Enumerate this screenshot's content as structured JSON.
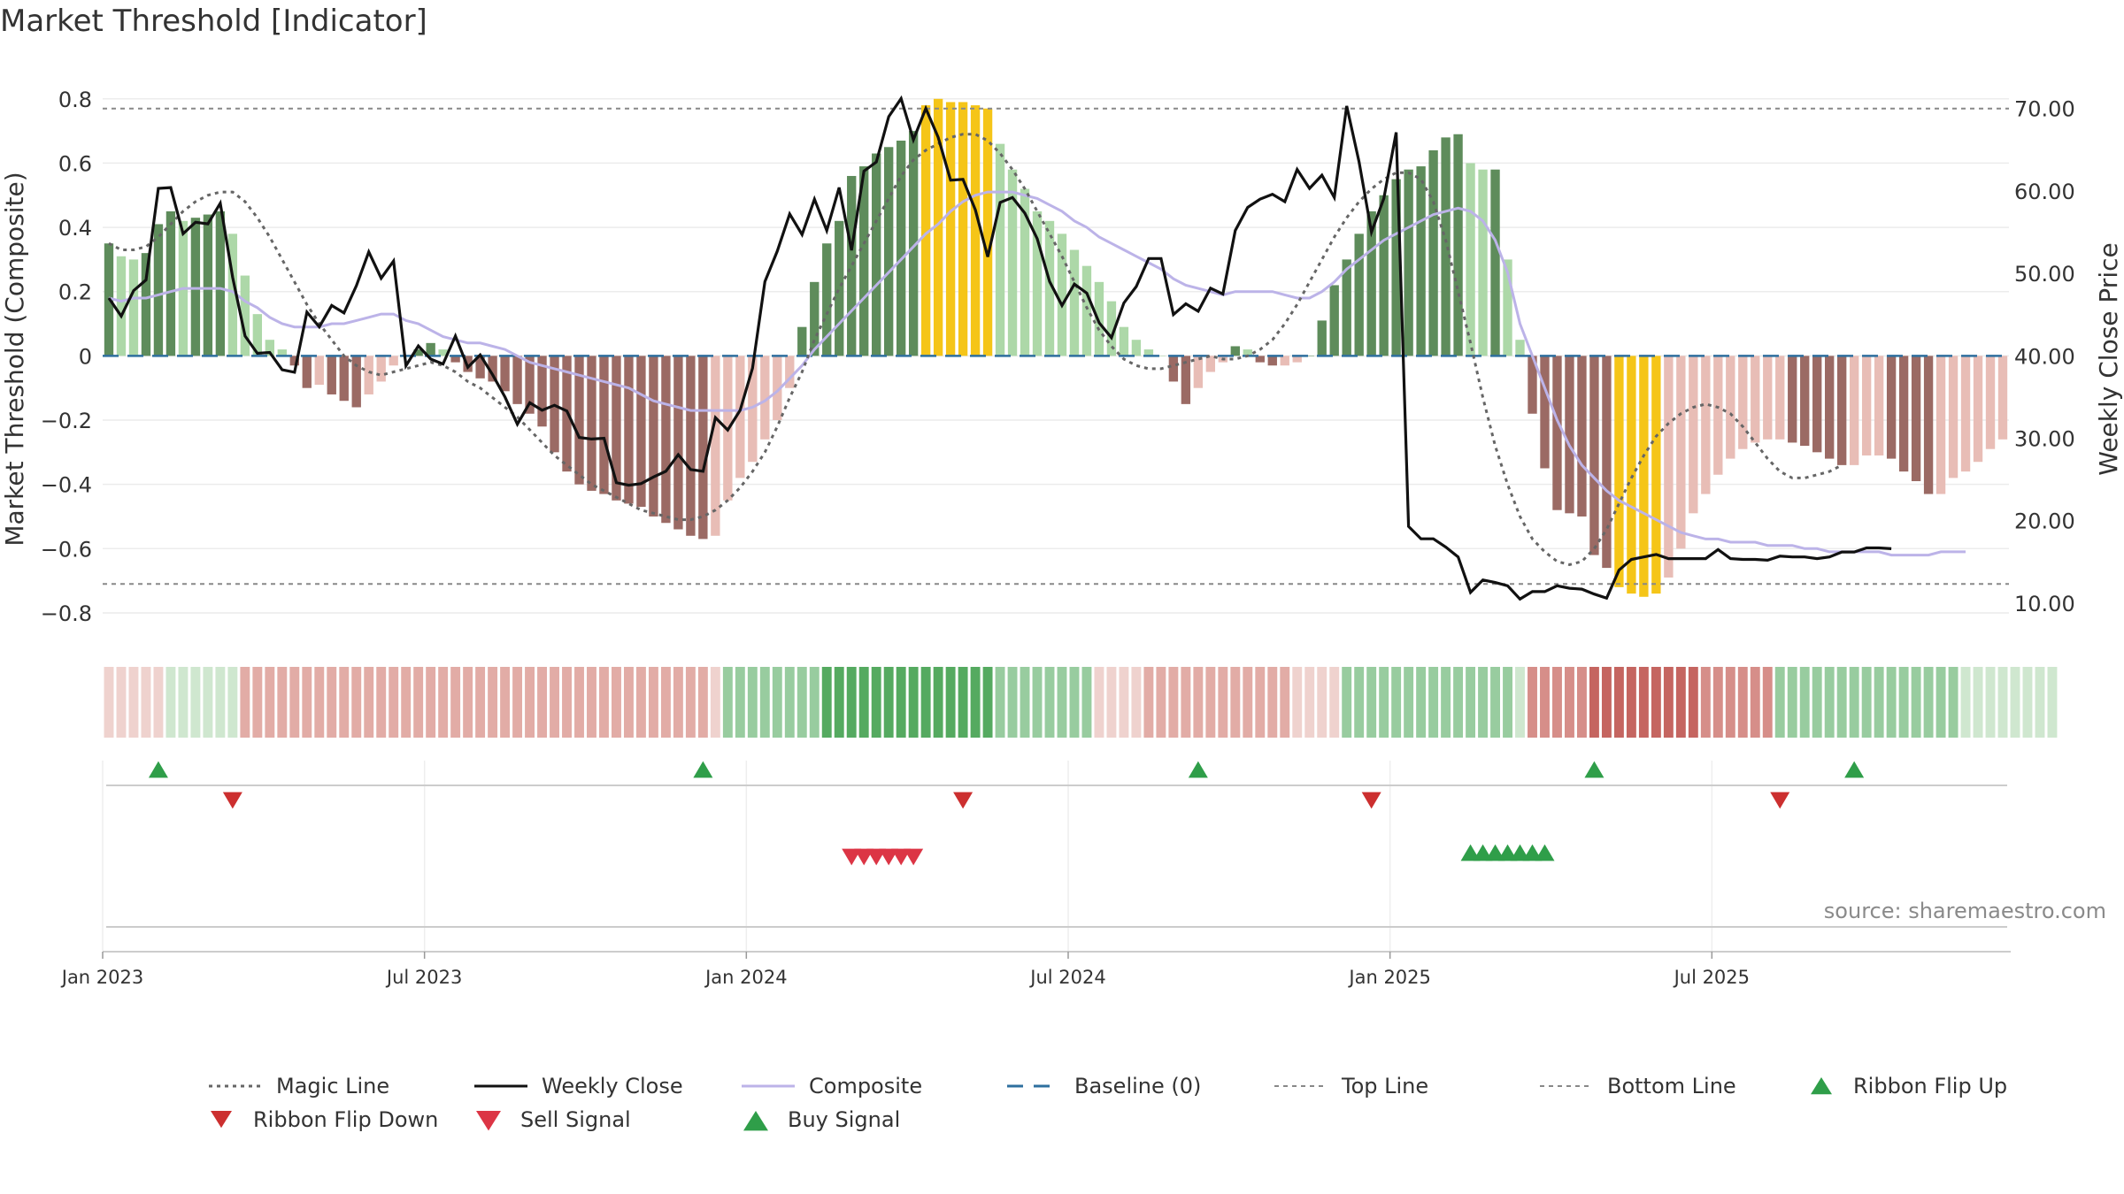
{
  "title": "Market Threshold [Indicator]",
  "source_note": "source: sharemaestro.com",
  "colors": {
    "magic_line": "#666666",
    "weekly_close": "#111111",
    "composite": "#bcb3e8",
    "baseline": "#2e6f9e",
    "top_bottom": "#888888",
    "pos_light": "#add8a8",
    "pos_dark": "#5e8c5b",
    "neg_light": "#e8bdb6",
    "neg_dark": "#9b6a64",
    "extreme": "#f5c518",
    "flip_up": "#2f9e49",
    "flip_down": "#cc2f2f",
    "sell": "#dc3545",
    "buy": "#2f9e49"
  },
  "chart_data": {
    "type": "bar",
    "title": "Market Threshold [Indicator]",
    "ylabel_left": "Market Threshold (Composite)",
    "ylabel_right": "Weekly Close Price",
    "ylim_left": [
      -0.88,
      0.86
    ],
    "ylim_right": [
      5.7,
      73.5
    ],
    "left_ticks": [
      "0.8",
      "0.6",
      "0.4",
      "0.2",
      "0",
      "−0.2",
      "−0.4",
      "−0.6",
      "−0.8"
    ],
    "left_tick_values": [
      0.8,
      0.6,
      0.4,
      0.2,
      0,
      -0.2,
      -0.4,
      -0.6,
      -0.8
    ],
    "right_ticks": [
      "70.00",
      "60.00",
      "50.00",
      "40.00",
      "30.00",
      "20.00",
      "10.00"
    ],
    "right_tick_values": [
      70,
      60,
      50,
      40,
      30,
      20,
      10
    ],
    "x_ticks": [
      "Jan 2023",
      "Jul 2023",
      "Jan 2024",
      "Jul 2024",
      "Jan 2025",
      "Jul 2025"
    ],
    "x_tick_weeks": [
      1,
      27,
      53,
      79,
      105,
      131
    ],
    "week_start_label": "Jan 2023",
    "top_line": 0.77,
    "bottom_line": -0.71,
    "baseline": 0,
    "bars": [
      0.35,
      0.31,
      0.3,
      0.32,
      0.41,
      0.45,
      0.42,
      0.43,
      0.44,
      0.45,
      0.38,
      0.25,
      0.13,
      0.05,
      0.02,
      -0.03,
      -0.1,
      -0.09,
      -0.12,
      -0.14,
      -0.16,
      -0.12,
      -0.08,
      -0.03,
      0.0,
      0.02,
      0.04,
      0.02,
      -0.02,
      -0.05,
      -0.07,
      -0.08,
      -0.11,
      -0.15,
      -0.18,
      -0.22,
      -0.3,
      -0.36,
      -0.4,
      -0.42,
      -0.43,
      -0.45,
      -0.46,
      -0.47,
      -0.5,
      -0.52,
      -0.54,
      -0.56,
      -0.57,
      -0.56,
      -0.45,
      -0.38,
      -0.33,
      -0.26,
      -0.2,
      -0.1,
      0.09,
      0.23,
      0.35,
      0.42,
      0.56,
      0.59,
      0.63,
      0.65,
      0.67,
      0.7,
      0.78,
      0.8,
      0.79,
      0.79,
      0.78,
      0.77,
      0.66,
      0.58,
      0.52,
      0.45,
      0.42,
      0.38,
      0.33,
      0.28,
      0.23,
      0.17,
      0.09,
      0.05,
      0.02,
      0.0,
      -0.08,
      -0.15,
      -0.1,
      -0.05,
      -0.02,
      0.03,
      0.02,
      -0.02,
      -0.03,
      -0.03,
      -0.02,
      0.0,
      0.11,
      0.22,
      0.3,
      0.38,
      0.45,
      0.5,
      0.55,
      0.58,
      0.59,
      0.64,
      0.68,
      0.69,
      0.6,
      0.58,
      0.58,
      0.3,
      0.05,
      -0.18,
      -0.35,
      -0.48,
      -0.49,
      -0.5,
      -0.62,
      -0.66,
      -0.72,
      -0.74,
      -0.75,
      -0.74,
      -0.69,
      -0.6,
      -0.49,
      -0.43,
      -0.37,
      -0.32,
      -0.29,
      -0.27,
      -0.26,
      -0.26,
      -0.27,
      -0.28,
      -0.3,
      -0.32,
      -0.34,
      -0.34,
      -0.31,
      -0.31,
      -0.32,
      -0.36,
      -0.39,
      -0.43,
      -0.43,
      -0.38,
      -0.36,
      -0.33,
      -0.29,
      -0.26
    ],
    "weekly_close": [
      47.0,
      44.8,
      47.9,
      49.2,
      60.3,
      60.4,
      54.8,
      56.2,
      56.0,
      58.5,
      49.5,
      42.4,
      40.3,
      40.4,
      38.3,
      38.0,
      45.3,
      43.5,
      46.1,
      45.2,
      48.5,
      52.6,
      49.4,
      51.5,
      38.8,
      41.2,
      39.6,
      39.0,
      42.4,
      38.6,
      40.1,
      37.7,
      35.0,
      31.7,
      34.3,
      33.4,
      34.0,
      33.3,
      30.1,
      29.9,
      30.0,
      24.6,
      24.3,
      24.5,
      25.3,
      26.0,
      28.0,
      26.2,
      26.0,
      32.5,
      31.0,
      33.4,
      38.5,
      49.0,
      52.7,
      57.2,
      54.7,
      59.0,
      55.2,
      60.4,
      52.8,
      62.4,
      63.5,
      69.0,
      71.2,
      66.2,
      70.0,
      66.5,
      61.3,
      61.4,
      57.7,
      52.0,
      58.6,
      59.2,
      57.3,
      54.2,
      49.0,
      46.1,
      48.7,
      47.6,
      44.0,
      42.2,
      46.4,
      48.4,
      51.8,
      51.8,
      45.0,
      46.3,
      45.4,
      48.2,
      47.5,
      55.2,
      58.0,
      59.0,
      59.6,
      58.7,
      62.6,
      60.3,
      61.9,
      59.2,
      70.3,
      63.5,
      55.0,
      59.1,
      67.1,
      19.3,
      17.8,
      17.8,
      16.8,
      15.6,
      11.3,
      12.8,
      12.5,
      12.1,
      10.5,
      11.4,
      11.4,
      12.1,
      11.8,
      11.7,
      11.1,
      10.6,
      14.0,
      15.3,
      15.6,
      15.9,
      15.4,
      15.4,
      15.4,
      15.4,
      16.5,
      15.4,
      15.3,
      15.3,
      15.2,
      15.7,
      15.6,
      15.6,
      15.4,
      15.6,
      16.2,
      16.2,
      16.7,
      16.7,
      16.6
    ],
    "composite": [
      0.18,
      0.17,
      0.18,
      0.18,
      0.19,
      0.2,
      0.21,
      0.21,
      0.21,
      0.21,
      0.2,
      0.17,
      0.15,
      0.12,
      0.1,
      0.09,
      0.09,
      0.09,
      0.1,
      0.1,
      0.11,
      0.12,
      0.13,
      0.13,
      0.11,
      0.1,
      0.08,
      0.06,
      0.05,
      0.04,
      0.04,
      0.03,
      0.02,
      0.0,
      -0.02,
      -0.03,
      -0.04,
      -0.05,
      -0.06,
      -0.07,
      -0.08,
      -0.09,
      -0.1,
      -0.12,
      -0.14,
      -0.15,
      -0.16,
      -0.17,
      -0.17,
      -0.17,
      -0.17,
      -0.17,
      -0.16,
      -0.14,
      -0.11,
      -0.07,
      -0.03,
      0.02,
      0.06,
      0.1,
      0.14,
      0.18,
      0.22,
      0.26,
      0.3,
      0.34,
      0.38,
      0.41,
      0.45,
      0.48,
      0.5,
      0.51,
      0.51,
      0.51,
      0.5,
      0.49,
      0.47,
      0.45,
      0.42,
      0.4,
      0.37,
      0.35,
      0.33,
      0.31,
      0.29,
      0.27,
      0.24,
      0.22,
      0.21,
      0.2,
      0.19,
      0.2,
      0.2,
      0.2,
      0.2,
      0.19,
      0.18,
      0.18,
      0.2,
      0.23,
      0.27,
      0.3,
      0.33,
      0.36,
      0.38,
      0.4,
      0.42,
      0.44,
      0.45,
      0.46,
      0.45,
      0.42,
      0.36,
      0.26,
      0.1,
      0.0,
      -0.1,
      -0.2,
      -0.28,
      -0.34,
      -0.38,
      -0.42,
      -0.45,
      -0.47,
      -0.49,
      -0.51,
      -0.53,
      -0.55,
      -0.56,
      -0.57,
      -0.57,
      -0.58,
      -0.58,
      -0.58,
      -0.59,
      -0.59,
      -0.59,
      -0.6,
      -0.6,
      -0.61,
      -0.61,
      -0.61,
      -0.61,
      -0.61,
      -0.62,
      -0.62,
      -0.62,
      -0.62,
      -0.61,
      -0.61,
      -0.61
    ],
    "magic_line": [
      0.35,
      0.33,
      0.33,
      0.34,
      0.37,
      0.41,
      0.45,
      0.48,
      0.5,
      0.51,
      0.51,
      0.48,
      0.43,
      0.37,
      0.3,
      0.23,
      0.16,
      0.1,
      0.05,
      0.0,
      -0.03,
      -0.05,
      -0.06,
      -0.05,
      -0.04,
      -0.03,
      -0.02,
      -0.03,
      -0.05,
      -0.08,
      -0.1,
      -0.13,
      -0.16,
      -0.19,
      -0.23,
      -0.27,
      -0.31,
      -0.34,
      -0.37,
      -0.4,
      -0.42,
      -0.44,
      -0.46,
      -0.48,
      -0.49,
      -0.5,
      -0.51,
      -0.51,
      -0.5,
      -0.48,
      -0.45,
      -0.41,
      -0.36,
      -0.3,
      -0.22,
      -0.13,
      -0.05,
      0.05,
      0.13,
      0.21,
      0.28,
      0.35,
      0.42,
      0.49,
      0.56,
      0.61,
      0.64,
      0.66,
      0.68,
      0.69,
      0.69,
      0.67,
      0.63,
      0.58,
      0.52,
      0.45,
      0.38,
      0.31,
      0.23,
      0.15,
      0.08,
      0.03,
      -0.01,
      -0.03,
      -0.04,
      -0.04,
      -0.03,
      -0.02,
      -0.01,
      0.0,
      -0.01,
      -0.01,
      0.0,
      0.02,
      0.05,
      0.1,
      0.16,
      0.23,
      0.3,
      0.37,
      0.43,
      0.48,
      0.52,
      0.55,
      0.57,
      0.57,
      0.55,
      0.48,
      0.36,
      0.2,
      0.04,
      -0.13,
      -0.28,
      -0.4,
      -0.5,
      -0.57,
      -0.61,
      -0.64,
      -0.65,
      -0.64,
      -0.6,
      -0.54,
      -0.46,
      -0.38,
      -0.31,
      -0.25,
      -0.21,
      -0.18,
      -0.16,
      -0.15,
      -0.16,
      -0.18,
      -0.22,
      -0.27,
      -0.32,
      -0.36,
      -0.38,
      -0.38,
      -0.37,
      -0.36,
      -0.34
    ],
    "ribbon": [
      -1,
      -1,
      -1,
      -1,
      -1,
      1,
      1,
      1,
      1,
      1,
      1,
      -2,
      -2,
      -2,
      -2,
      -2,
      -2,
      -2,
      -2,
      -2,
      -2,
      -2,
      -2,
      -2,
      -2,
      -2,
      -2,
      -2,
      -2,
      -2,
      -2,
      -2,
      -2,
      -2,
      -2,
      -2,
      -2,
      -2,
      -2,
      -2,
      -2,
      -2,
      -2,
      -2,
      -2,
      -2,
      -2,
      -2,
      -2,
      -1,
      2,
      2,
      2,
      2,
      2,
      2,
      2,
      2,
      3,
      3,
      3,
      3,
      3,
      3,
      3,
      3,
      3,
      3,
      3,
      3,
      3,
      3,
      2,
      2,
      2,
      2,
      2,
      2,
      2,
      2,
      -1,
      -1,
      -1,
      -1,
      -2,
      -2,
      -2,
      -2,
      -2,
      -2,
      -2,
      -2,
      -2,
      -2,
      -2,
      -2,
      -1,
      -1,
      -1,
      -1,
      2,
      2,
      2,
      2,
      2,
      2,
      2,
      2,
      2,
      2,
      2,
      2,
      2,
      2,
      1,
      -3,
      -3,
      -3,
      -3,
      -3,
      -4,
      -4,
      -4,
      -4,
      -4,
      -4,
      -4,
      -4,
      -4,
      -3,
      -3,
      -3,
      -3,
      -3,
      -3,
      2,
      2,
      2,
      2,
      2,
      2,
      2,
      2,
      2,
      2,
      2,
      2,
      2,
      2,
      2,
      1,
      1,
      1,
      1,
      1,
      1,
      1,
      1
    ],
    "ribbon_flip_up_weeks": [
      5,
      49,
      89,
      121,
      142
    ],
    "ribbon_flip_down_weeks": [
      11,
      70,
      103,
      136
    ],
    "sell_signal_weeks": [
      61,
      62,
      63,
      64,
      65,
      66
    ],
    "buy_signal_weeks": [
      111,
      112,
      113,
      114,
      115,
      116,
      117
    ],
    "legend": [
      "Magic Line",
      "Weekly Close",
      "Composite",
      "Baseline (0)",
      "Top Line",
      "Bottom Line",
      "Ribbon Flip Up",
      "Ribbon Flip Down",
      "Sell Signal",
      "Buy Signal"
    ],
    "legend_position": "bottom",
    "grid": true
  }
}
